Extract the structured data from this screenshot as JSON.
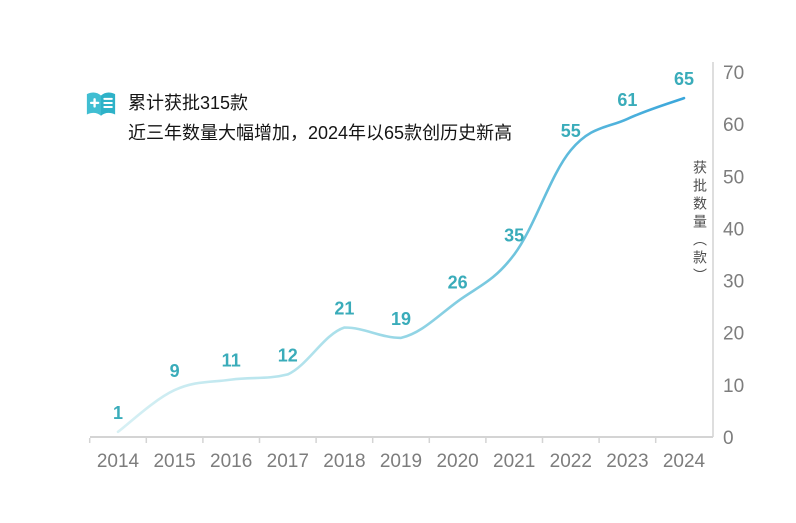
{
  "header": {
    "icon": "record-book-icon"
  },
  "chart_data": {
    "type": "line",
    "annotation_lines": [
      "累计获批315款",
      "近三年数量大幅增加，2024年以65款创历史新高"
    ],
    "categories": [
      "2014",
      "2015",
      "2016",
      "2017",
      "2018",
      "2019",
      "2020",
      "2021",
      "2022",
      "2023",
      "2024"
    ],
    "values": [
      1,
      9,
      11,
      12,
      21,
      19,
      26,
      35,
      55,
      61,
      65
    ],
    "series_name": "获批数量",
    "title": "",
    "xlabel": "",
    "ylabel": "获批数量（款）",
    "ylim": [
      0,
      70
    ],
    "yticks": [
      0,
      10,
      20,
      30,
      40,
      50,
      60,
      70
    ],
    "y_axis_position": "right",
    "grid": false,
    "legend": "none",
    "data_labels": true,
    "colors": {
      "line_gradient": [
        "#d7f0f4",
        "#a9dfea",
        "#6fc4dd",
        "#3aa6db"
      ],
      "label_color": "#3aacba",
      "axis_text_color": "#7d7d7d",
      "axis_line_color": "#d4d4d4",
      "annotation_text_color": "#141414",
      "icon_color_left": "#40bed2",
      "icon_color_right": "#2eb2c8"
    }
  }
}
